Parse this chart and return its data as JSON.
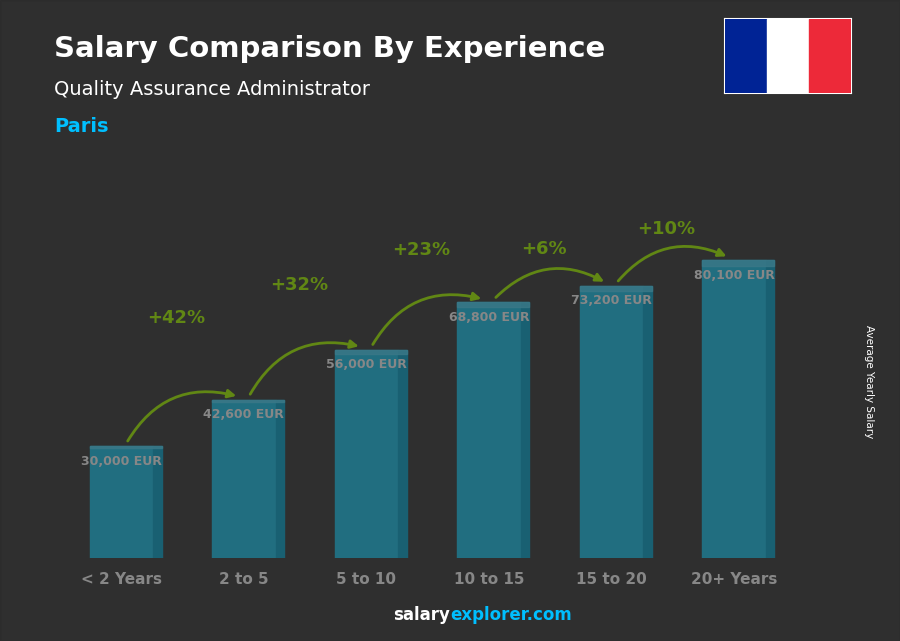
{
  "title": "Salary Comparison By Experience",
  "subtitle": "Quality Assurance Administrator",
  "city": "Paris",
  "categories": [
    "< 2 Years",
    "2 to 5",
    "5 to 10",
    "10 to 15",
    "15 to 20",
    "20+ Years"
  ],
  "values": [
    30000,
    42600,
    56000,
    68800,
    73200,
    80100
  ],
  "labels": [
    "30,000 EUR",
    "42,600 EUR",
    "56,000 EUR",
    "68,800 EUR",
    "73,200 EUR",
    "80,100 EUR"
  ],
  "pct_changes": [
    "+42%",
    "+32%",
    "+23%",
    "+6%",
    "+10%"
  ],
  "bar_color": "#1EC8F0",
  "bar_color_dark": "#0B8BB0",
  "bar_color_right": "#0BA8D0",
  "pct_color": "#AAFF00",
  "label_color": "#FFFFFF",
  "title_color": "#FFFFFF",
  "subtitle_color": "#FFFFFF",
  "city_color": "#00BFFF",
  "bg_color": "#3d3d3d",
  "watermark_white": "salary",
  "watermark_cyan": "explorer.com",
  "ylabel": "Average Yearly Salary",
  "flag_colors": [
    "#002395",
    "#FFFFFF",
    "#ED2939"
  ],
  "ymax": 95000
}
